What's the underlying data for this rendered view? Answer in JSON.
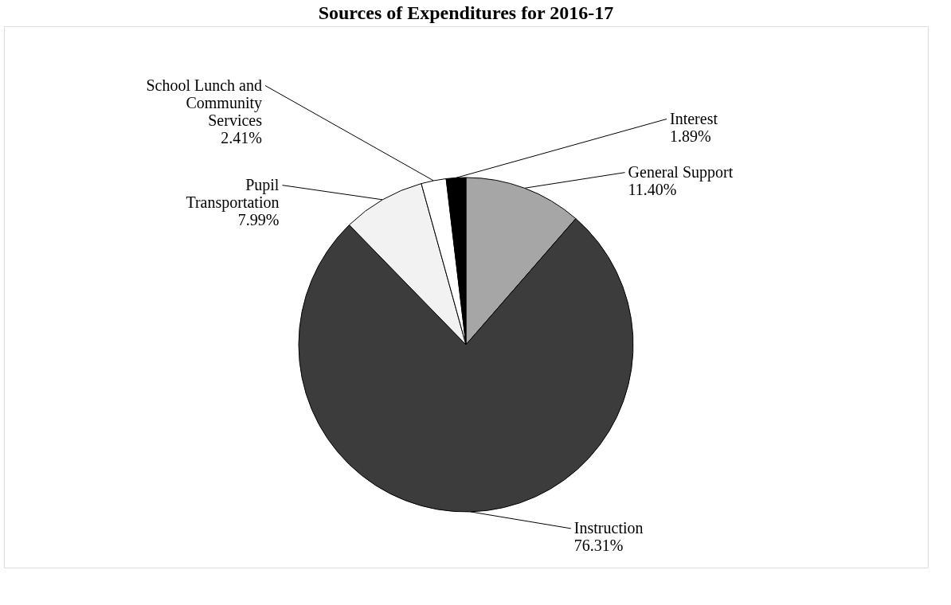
{
  "chart_data": {
    "type": "pie",
    "title": "Sources of Expenditures for 2016-17",
    "categories": [
      "General Support",
      "Instruction",
      "Pupil Transportation",
      "School Lunch and Community Services",
      "Interest"
    ],
    "values": [
      11.4,
      76.31,
      7.99,
      2.41,
      1.89
    ],
    "colors": [
      "#a6a6a6",
      "#3c3c3c",
      "#f2f2f2",
      "#ffffff",
      "#000000"
    ],
    "value_labels": [
      "11.40%",
      "76.31%",
      "7.99%",
      "2.41%",
      "1.89%"
    ]
  }
}
